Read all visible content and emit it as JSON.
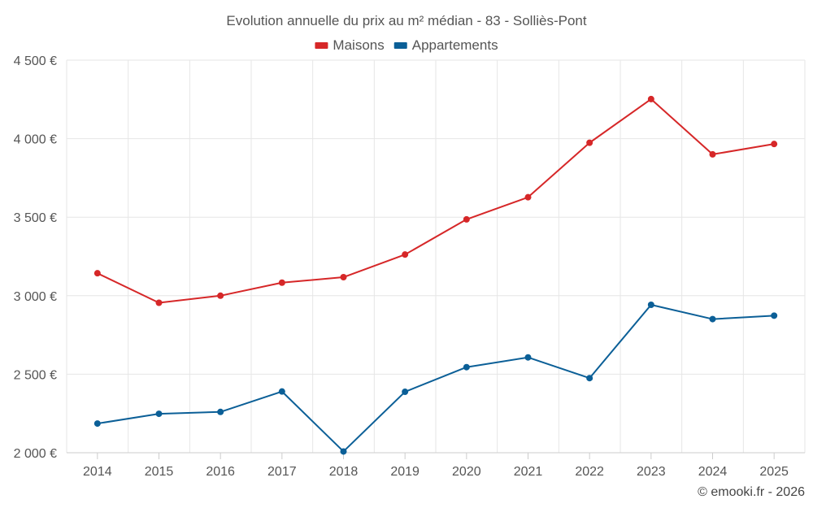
{
  "chart_data": {
    "type": "line",
    "title": "Evolution annuelle du prix au m² médian - 83 - Solliès-Pont",
    "xlabel": "",
    "ylabel": "",
    "categories": [
      "2014",
      "2015",
      "2016",
      "2017",
      "2018",
      "2019",
      "2020",
      "2021",
      "2022",
      "2023",
      "2024",
      "2025"
    ],
    "series": [
      {
        "name": "Maisons",
        "color": "#d62728",
        "values": [
          3143,
          2955,
          3000,
          3083,
          3118,
          3262,
          3486,
          3627,
          3974,
          4252,
          3900,
          3966
        ]
      },
      {
        "name": "Appartements",
        "color": "#0b5f97",
        "values": [
          2186,
          2248,
          2260,
          2390,
          2008,
          2388,
          2545,
          2607,
          2475,
          2942,
          2851,
          2873
        ]
      }
    ],
    "ylim": [
      2000,
      4500
    ],
    "yticks": [
      {
        "value": 2000,
        "label": "2 000 €"
      },
      {
        "value": 2500,
        "label": "2 500 €"
      },
      {
        "value": 3000,
        "label": "3 000 €"
      },
      {
        "value": 3500,
        "label": "3 500 €"
      },
      {
        "value": 4000,
        "label": "4 000 €"
      },
      {
        "value": 4500,
        "label": "4 500 €"
      }
    ],
    "grid": true,
    "legend": "top-center"
  },
  "credit": "© emooki.fr - 2026"
}
